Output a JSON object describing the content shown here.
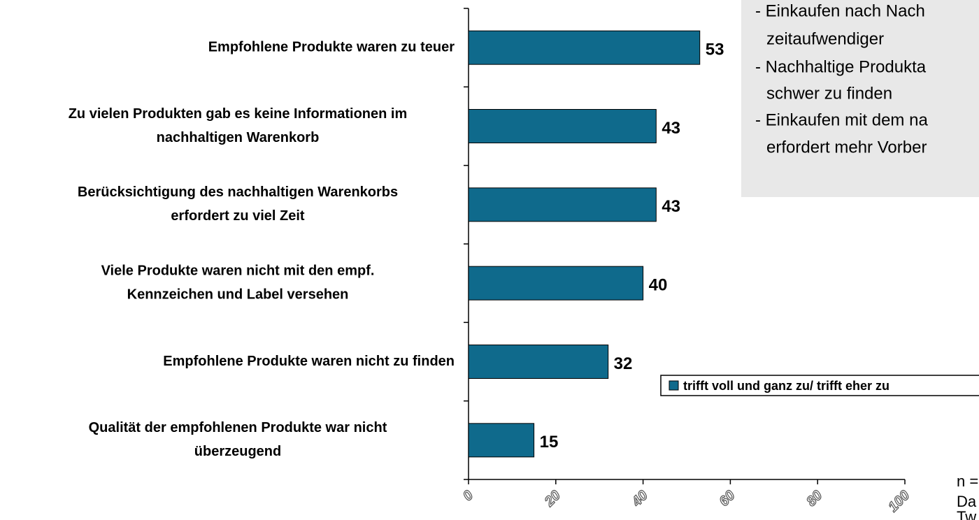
{
  "chart_data": {
    "type": "barh",
    "categories": [
      [
        "Empfohlene Produkte waren zu teuer"
      ],
      [
        "Zu vielen Produkten gab es keine Informationen im",
        "nachhaltigen Warenkorb"
      ],
      [
        "Berücksichtigung des nachhaltigen Warenkorbs",
        "erfordert zu viel Zeit"
      ],
      [
        "Viele Produkte waren nicht mit den empf.",
        "Kennzeichen und Label versehen"
      ],
      [
        "Empfohlene Produkte waren nicht zu finden"
      ],
      [
        "Qualität der empfohlenen Produkte war nicht",
        "überzeugend"
      ]
    ],
    "series": [
      {
        "name": "trifft voll und ganz zu/ trifft eher zu",
        "color": "#0f6a8c",
        "values": [
          53,
          43,
          43,
          40,
          32,
          15
        ]
      }
    ],
    "xlim": [
      0,
      100
    ],
    "xticks": [
      0,
      20,
      40,
      60,
      80,
      100
    ],
    "annotations": {
      "box": [
        "- Einkaufen nach Nach",
        "zeitaufwendiger",
        "- Nachhaltige Produkta",
        "schwer zu finden",
        "- Einkaufen mit dem na",
        "erfordert mehr Vorber"
      ],
      "footnote": [
        "n =",
        "Da",
        "Tw"
      ]
    }
  }
}
